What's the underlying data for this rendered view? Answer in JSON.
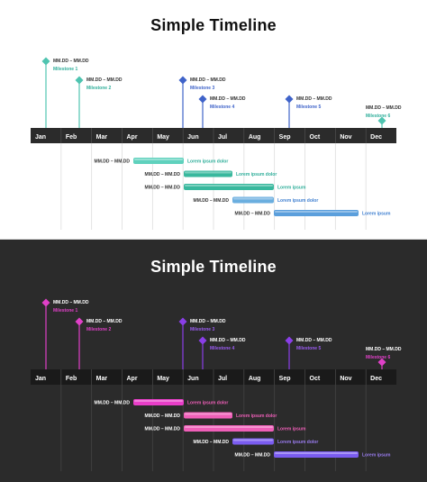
{
  "months": [
    "Jan",
    "Feb",
    "Mar",
    "Apr",
    "May",
    "Jun",
    "Jul",
    "Aug",
    "Sep",
    "Oct",
    "Nov",
    "Dec"
  ],
  "panels": [
    {
      "theme": "light",
      "title": "Simple Timeline",
      "colors": {
        "bg": "#ffffff",
        "title": "#111111",
        "band": "#2b2b2b",
        "month_text": "#ffffff",
        "grid": "#dcdcdc",
        "label": "#333333",
        "milestone_colors": [
          "#4fc4b0",
          "#4fc4b0",
          "#3f63c9",
          "#3f63c9",
          "#3f63c9",
          "#4fc4b0"
        ],
        "milestone_label_colors": [
          "#2fae9a",
          "#2fae9a",
          "#3f63c9",
          "#3f63c9",
          "#3f63c9",
          "#2fae9a"
        ],
        "bar_colors": [
          "#5fd1bd",
          "#38b89d",
          "#38b89d",
          "#6aaedf",
          "#5b9fdc"
        ],
        "bar_label_colors": [
          "#2fae9a",
          "#2fae9a",
          "#2fae9a",
          "#3f7fd0",
          "#3f7fd0"
        ]
      },
      "milestones": [
        {
          "date": "MM.DD – MM.DD",
          "label": "Milestone 1"
        },
        {
          "date": "MM.DD – MM.DD",
          "label": "Milestone 2"
        },
        {
          "date": "MM.DD – MM.DD",
          "label": "Milestone 3"
        },
        {
          "date": "MM.DD – MM.DD",
          "label": "Milestone 4"
        },
        {
          "date": "MM.DD – MM.DD",
          "label": "Milestone 5"
        },
        {
          "date": "MM.DD – MM.DD",
          "label": "Milestone 6"
        }
      ],
      "tasks": [
        {
          "date": "MM.DD – MM.DD",
          "label": "Lorem ipsum dolor"
        },
        {
          "date": "MM.DD – MM.DD",
          "label": "Lorem ipsum dolor"
        },
        {
          "date": "MM.DD – MM.DD",
          "label": "Lorem ipsum"
        },
        {
          "date": "MM.DD – MM.DD",
          "label": "Lorem ipsum dolor"
        },
        {
          "date": "MM.DD – MM.DD",
          "label": "Lorem ipsum"
        }
      ]
    },
    {
      "theme": "dark",
      "title": "Simple Timeline",
      "colors": {
        "bg": "#2b2b2b",
        "title": "#ffffff",
        "band": "#1a1a1a",
        "month_text": "#ffffff",
        "grid": "#444444",
        "label": "#ffffff",
        "milestone_colors": [
          "#e040c8",
          "#e040c8",
          "#8a3ee8",
          "#8a3ee8",
          "#8a3ee8",
          "#e040c8"
        ],
        "milestone_label_colors": [
          "#e040c8",
          "#e040c8",
          "#9a5cf0",
          "#9a5cf0",
          "#9a5cf0",
          "#e040c8"
        ],
        "bar_colors": [
          "#e83ec8",
          "#ef5fb8",
          "#ef5fb8",
          "#7a5cf0",
          "#7a5cf0"
        ],
        "bar_label_colors": [
          "#ef5fb8",
          "#ef5fb8",
          "#ef5fb8",
          "#9a7cf0",
          "#9a7cf0"
        ]
      },
      "milestones": [
        {
          "date": "MM.DD – MM.DD",
          "label": "Milestone 1"
        },
        {
          "date": "MM.DD – MM.DD",
          "label": "Milestone 2"
        },
        {
          "date": "MM.DD – MM.DD",
          "label": "Milestone 3"
        },
        {
          "date": "MM.DD – MM.DD",
          "label": "Milestone 4"
        },
        {
          "date": "MM.DD – MM.DD",
          "label": "Milestone 5"
        },
        {
          "date": "MM.DD – MM.DD",
          "label": "Milestone 6"
        }
      ],
      "tasks": [
        {
          "date": "MM.DD – MM.DD",
          "label": "Lorem ipsum dolor"
        },
        {
          "date": "MM.DD – MM.DD",
          "label": "Lorem ipsum dolor"
        },
        {
          "date": "MM.DD – MM.DD",
          "label": "Lorem ipsum"
        },
        {
          "date": "MM.DD – MM.DD",
          "label": "Lorem ipsum dolor"
        },
        {
          "date": "MM.DD – MM.DD",
          "label": "Lorem ipsum"
        }
      ]
    }
  ]
}
